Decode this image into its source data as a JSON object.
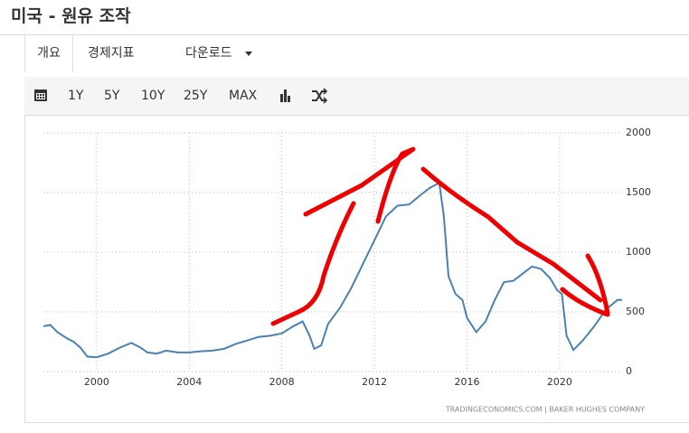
{
  "header": {
    "title": "미국 - 원유 조작"
  },
  "tabs": [
    "개요",
    "경제지표",
    "다운로드"
  ],
  "toolbar": [
    "1Y",
    "5Y",
    "10Y",
    "25Y",
    "MAX"
  ],
  "chart_data": {
    "type": "line",
    "source": "TRADINGECONOMICS.COM  |  BAKER HUGHES COMPANY",
    "x": [
      1997.7,
      1998.0,
      1998.3,
      1998.7,
      1999.0,
      1999.3,
      1999.6,
      2000.0,
      2000.5,
      2001.0,
      2001.5,
      2001.9,
      2002.2,
      2002.6,
      2003.0,
      2003.5,
      2004.0,
      2004.5,
      2005.0,
      2005.5,
      2006.0,
      2006.5,
      2007.0,
      2007.5,
      2008.0,
      2008.5,
      2008.9,
      2009.2,
      2009.4,
      2009.7,
      2010.0,
      2010.5,
      2011.0,
      2011.5,
      2012.0,
      2012.5,
      2013.0,
      2013.5,
      2014.0,
      2014.4,
      2014.8,
      2015.0,
      2015.2,
      2015.5,
      2015.8,
      2016.0,
      2016.4,
      2016.8,
      2017.2,
      2017.6,
      2018.0,
      2018.4,
      2018.8,
      2019.2,
      2019.6,
      2019.9,
      2020.1,
      2020.3,
      2020.6,
      2021.0,
      2021.5,
      2022.0,
      2022.5,
      2022.7
    ],
    "series": [
      {
        "color": "#4a81b4",
        "values": [
          380,
          390,
          330,
          280,
          250,
          200,
          125,
          120,
          150,
          200,
          240,
          200,
          160,
          150,
          175,
          160,
          160,
          170,
          175,
          190,
          230,
          260,
          290,
          300,
          320,
          380,
          420,
          300,
          190,
          220,
          400,
          530,
          700,
          900,
          1100,
          1300,
          1390,
          1400,
          1480,
          1540,
          1580,
          1300,
          800,
          650,
          600,
          450,
          330,
          420,
          600,
          750,
          760,
          820,
          880,
          860,
          780,
          680,
          650,
          300,
          180,
          260,
          380,
          520,
          600,
          600
        ]
      }
    ],
    "xlim": [
      1997.7,
      2022.7
    ],
    "xticks": [
      2000,
      2004,
      2008,
      2012,
      2016,
      2020
    ],
    "ylim": [
      0,
      2000
    ],
    "yticks": [
      0,
      500,
      1000,
      1500,
      2000
    ],
    "grid": true
  }
}
